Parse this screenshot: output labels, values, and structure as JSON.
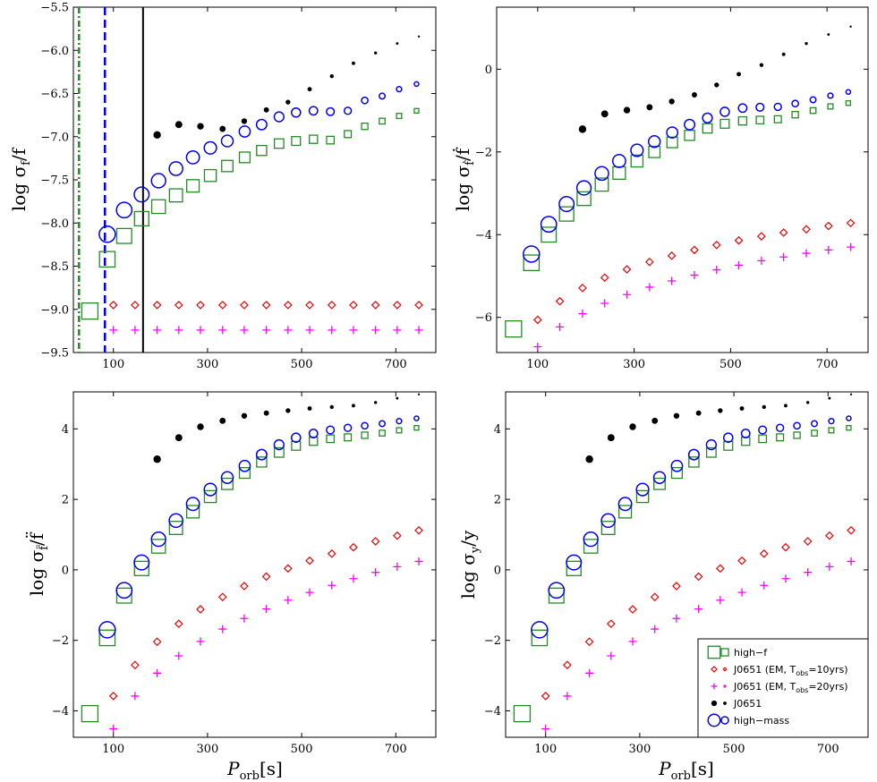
{
  "chart_data": [
    {
      "type": "scatter",
      "panel": "top-left",
      "ylabel_main": "log σ",
      "ylabel_sub": "f",
      "ylabel_tail": "/f",
      "xlabel": "",
      "xlim": [
        15,
        785
      ],
      "ylim": [
        -9.5,
        -5.5
      ],
      "xticks": [
        "100",
        "300",
        "500",
        "700"
      ],
      "xtick_values": [
        100,
        300,
        500,
        700
      ],
      "yticks": [
        "−5.5",
        "−6.0",
        "−6.5",
        "−7.0",
        "−7.5",
        "−8.0",
        "−8.5",
        "−9.0",
        "−9.5"
      ],
      "ytick_values": [
        -5.5,
        -6.0,
        -6.5,
        -7.0,
        -7.5,
        -8.0,
        -8.5,
        -9.0,
        -9.5
      ],
      "vlines": [
        {
          "x": 27,
          "style": "dashdot",
          "color": "#228b22"
        },
        {
          "x": 82,
          "style": "dashed",
          "color": "#0000ee"
        },
        {
          "x": 163,
          "style": "solid",
          "color": "#000000"
        }
      ],
      "series": [
        {
          "name": "high-f",
          "marker": "square",
          "color": "#228b22",
          "x": [
            50,
            87,
            123,
            160,
            196,
            233,
            269,
            306,
            342,
            379,
            415,
            452,
            488,
            525,
            561,
            598,
            634,
            671,
            707,
            744
          ],
          "y": [
            -9.02,
            -8.42,
            -8.15,
            -7.95,
            -7.81,
            -7.68,
            -7.57,
            -7.45,
            -7.34,
            -7.24,
            -7.16,
            -7.08,
            -7.05,
            -7.03,
            -7.04,
            -6.97,
            -6.88,
            -6.82,
            -6.76,
            -6.7
          ]
        },
        {
          "name": "J0651 (EM, Tobs=10yrs)",
          "marker": "diamond",
          "color": "#ee0000",
          "x": [
            100,
            146,
            193,
            239,
            285,
            332,
            378,
            425,
            471,
            517,
            564,
            610,
            657,
            703,
            749
          ],
          "y": [
            -8.95,
            -8.95,
            -8.95,
            -8.95,
            -8.95,
            -8.95,
            -8.95,
            -8.95,
            -8.95,
            -8.95,
            -8.95,
            -8.95,
            -8.95,
            -8.95,
            -8.95
          ]
        },
        {
          "name": "J0651 (EM, Tobs=20yrs)",
          "marker": "plus",
          "color": "#ff00ff",
          "x": [
            100,
            146,
            193,
            239,
            285,
            332,
            378,
            425,
            471,
            517,
            564,
            610,
            657,
            703,
            749
          ],
          "y": [
            -9.24,
            -9.24,
            -9.24,
            -9.24,
            -9.24,
            -9.24,
            -9.24,
            -9.24,
            -9.24,
            -9.24,
            -9.24,
            -9.24,
            -9.24,
            -9.24,
            -9.24
          ]
        },
        {
          "name": "J0651",
          "marker": "dot",
          "color": "#000000",
          "x": [
            193,
            239,
            285,
            332,
            378,
            425,
            471,
            517,
            564,
            610,
            657,
            703,
            749
          ],
          "y": [
            -6.98,
            -6.86,
            -6.88,
            -6.91,
            -6.82,
            -6.69,
            -6.6,
            -6.45,
            -6.3,
            -6.15,
            -6.03,
            -5.92,
            -5.84
          ]
        },
        {
          "name": "high-mass",
          "marker": "circle",
          "color": "#0000ee",
          "x": [
            87,
            123,
            160,
            196,
            233,
            269,
            306,
            342,
            379,
            415,
            452,
            488,
            525,
            561,
            598,
            634,
            671,
            707,
            744
          ],
          "y": [
            -8.13,
            -7.85,
            -7.67,
            -7.51,
            -7.37,
            -7.24,
            -7.13,
            -7.05,
            -6.94,
            -6.86,
            -6.77,
            -6.72,
            -6.7,
            -6.71,
            -6.7,
            -6.58,
            -6.53,
            -6.45,
            -6.39
          ]
        }
      ]
    },
    {
      "type": "scatter",
      "panel": "top-right",
      "ylabel_main": "log σ",
      "ylabel_sub": "ḟ",
      "ylabel_tail": "/ḟ",
      "xlabel": "",
      "xlim": [
        15,
        785
      ],
      "ylim": [
        -6.85,
        1.5
      ],
      "xticks": [
        "100",
        "300",
        "500",
        "700"
      ],
      "xtick_values": [
        100,
        300,
        500,
        700
      ],
      "yticks": [
        "0",
        "−2",
        "−4",
        "−6"
      ],
      "ytick_values": [
        0,
        -2,
        -4,
        -6
      ],
      "series": [
        {
          "name": "high-f",
          "marker": "square",
          "color": "#228b22",
          "x": [
            50,
            87,
            123,
            160,
            196,
            233,
            269,
            306,
            342,
            379,
            415,
            452,
            488,
            525,
            561,
            598,
            634,
            671,
            707,
            744
          ],
          "y": [
            -6.28,
            -4.68,
            -4.0,
            -3.5,
            -3.13,
            -2.79,
            -2.51,
            -2.22,
            -2.0,
            -1.77,
            -1.6,
            -1.43,
            -1.32,
            -1.25,
            -1.23,
            -1.21,
            -1.1,
            -1.0,
            -0.9,
            -0.82
          ]
        },
        {
          "name": "J0651 (EM, Tobs=10yrs)",
          "marker": "diamond",
          "color": "#ee0000",
          "x": [
            100,
            146,
            193,
            239,
            285,
            332,
            378,
            425,
            471,
            517,
            564,
            610,
            657,
            703,
            749
          ],
          "y": [
            -6.06,
            -5.61,
            -5.29,
            -5.04,
            -4.84,
            -4.66,
            -4.51,
            -4.37,
            -4.25,
            -4.14,
            -4.04,
            -3.95,
            -3.87,
            -3.79,
            -3.72
          ]
        },
        {
          "name": "J0651 (EM, Tobs=20yrs)",
          "marker": "plus",
          "color": "#ff00ff",
          "x": [
            100,
            146,
            193,
            239,
            285,
            332,
            378,
            425,
            471,
            517,
            564,
            610,
            657,
            703,
            749
          ],
          "y": [
            -6.71,
            -6.23,
            -5.91,
            -5.66,
            -5.45,
            -5.27,
            -5.12,
            -4.98,
            -4.85,
            -4.74,
            -4.63,
            -4.54,
            -4.45,
            -4.37,
            -4.3
          ]
        },
        {
          "name": "J0651",
          "marker": "dot",
          "color": "#000000",
          "x": [
            193,
            239,
            285,
            332,
            378,
            425,
            471,
            517,
            564,
            610,
            657,
            703,
            749
          ],
          "y": [
            -1.45,
            -1.08,
            -0.99,
            -0.92,
            -0.78,
            -0.62,
            -0.38,
            -0.12,
            0.1,
            0.36,
            0.62,
            0.84,
            1.03
          ]
        },
        {
          "name": "high-mass",
          "marker": "circle",
          "color": "#0000ee",
          "x": [
            87,
            123,
            160,
            196,
            233,
            269,
            306,
            342,
            379,
            415,
            452,
            488,
            525,
            561,
            598,
            634,
            671,
            707,
            744
          ],
          "y": [
            -4.47,
            -3.75,
            -3.26,
            -2.87,
            -2.52,
            -2.22,
            -1.96,
            -1.75,
            -1.53,
            -1.34,
            -1.18,
            -1.03,
            -0.94,
            -0.92,
            -0.91,
            -0.83,
            -0.74,
            -0.64,
            -0.55
          ]
        }
      ]
    },
    {
      "type": "scatter",
      "panel": "bottom-left",
      "ylabel_main": "log σ",
      "ylabel_sub": "f̈",
      "ylabel_tail": "/f̈",
      "xlabel": "P_orb[s]",
      "xlim": [
        15,
        785
      ],
      "ylim": [
        -4.75,
        5.05
      ],
      "xticks": [
        "100",
        "300",
        "500",
        "700"
      ],
      "xtick_values": [
        100,
        300,
        500,
        700
      ],
      "yticks": [
        "4",
        "2",
        "0",
        "−2",
        "−4"
      ],
      "ytick_values": [
        4,
        2,
        0,
        -2,
        -4
      ],
      "series": [
        {
          "name": "high-f",
          "marker": "square",
          "color": "#228b22",
          "x": [
            50,
            87,
            123,
            160,
            196,
            233,
            269,
            306,
            342,
            379,
            415,
            452,
            488,
            525,
            561,
            598,
            634,
            671,
            707,
            744
          ],
          "y": [
            -4.08,
            -1.93,
            -0.73,
            0.04,
            0.67,
            1.19,
            1.65,
            2.08,
            2.44,
            2.75,
            3.06,
            3.33,
            3.52,
            3.65,
            3.72,
            3.76,
            3.82,
            3.88,
            3.96,
            4.03
          ]
        },
        {
          "name": "J0651 (EM, Tobs=10yrs)",
          "marker": "diamond",
          "color": "#ee0000",
          "x": [
            100,
            146,
            193,
            239,
            285,
            332,
            378,
            425,
            471,
            517,
            564,
            610,
            657,
            703,
            749
          ],
          "y": [
            -3.58,
            -2.7,
            -2.04,
            -1.53,
            -1.12,
            -0.77,
            -0.46,
            -0.19,
            0.04,
            0.26,
            0.46,
            0.64,
            0.81,
            0.97,
            1.12
          ]
        },
        {
          "name": "J0651 (EM, Tobs=20yrs)",
          "marker": "plus",
          "color": "#ff00ff",
          "x": [
            100,
            146,
            193,
            239,
            285,
            332,
            378,
            425,
            471,
            517,
            564,
            610,
            657,
            703,
            749
          ],
          "y": [
            -4.51,
            -3.58,
            -2.93,
            -2.44,
            -2.03,
            -1.68,
            -1.38,
            -1.11,
            -0.86,
            -0.64,
            -0.44,
            -0.25,
            -0.07,
            0.09,
            0.24
          ]
        },
        {
          "name": "J0651",
          "marker": "dot",
          "color": "#000000",
          "x": [
            193,
            239,
            285,
            332,
            378,
            425,
            471,
            517,
            564,
            610,
            657,
            703,
            749
          ],
          "y": [
            3.14,
            3.75,
            4.06,
            4.23,
            4.37,
            4.45,
            4.52,
            4.58,
            4.62,
            4.66,
            4.75,
            4.87,
            4.98
          ]
        },
        {
          "name": "high-mass",
          "marker": "circle",
          "color": "#0000ee",
          "x": [
            87,
            123,
            160,
            196,
            233,
            269,
            306,
            342,
            379,
            415,
            452,
            488,
            525,
            561,
            598,
            634,
            671,
            707,
            744
          ],
          "y": [
            -1.7,
            -0.58,
            0.21,
            0.87,
            1.4,
            1.87,
            2.28,
            2.62,
            2.95,
            3.27,
            3.55,
            3.75,
            3.87,
            3.97,
            4.03,
            4.09,
            4.15,
            4.22,
            4.3
          ]
        }
      ]
    },
    {
      "type": "scatter",
      "panel": "bottom-right",
      "ylabel_main": "log σ",
      "ylabel_sub": "y",
      "ylabel_tail": "/y",
      "xlabel": "P_orb[s]",
      "xlim": [
        15,
        785
      ],
      "ylim": [
        -4.75,
        5.05
      ],
      "xticks": [
        "100",
        "300",
        "500",
        "700"
      ],
      "xtick_values": [
        100,
        300,
        500,
        700
      ],
      "yticks": [
        "4",
        "2",
        "0",
        "−2",
        "−4"
      ],
      "ytick_values": [
        4,
        2,
        0,
        -2,
        -4
      ],
      "legend_position": "lower-right",
      "series": [
        {
          "name": "high-f",
          "marker": "square",
          "color": "#228b22",
          "x": [
            50,
            87,
            123,
            160,
            196,
            233,
            269,
            306,
            342,
            379,
            415,
            452,
            488,
            525,
            561,
            598,
            634,
            671,
            707,
            744
          ],
          "y": [
            -4.08,
            -1.93,
            -0.73,
            0.04,
            0.67,
            1.19,
            1.65,
            2.08,
            2.44,
            2.75,
            3.06,
            3.33,
            3.52,
            3.65,
            3.72,
            3.76,
            3.82,
            3.88,
            3.96,
            4.03
          ]
        },
        {
          "name": "J0651 (EM, Tobs=10yrs)",
          "marker": "diamond",
          "color": "#ee0000",
          "x": [
            100,
            146,
            193,
            239,
            285,
            332,
            378,
            425,
            471,
            517,
            564,
            610,
            657,
            703,
            749
          ],
          "y": [
            -3.58,
            -2.7,
            -2.04,
            -1.53,
            -1.12,
            -0.77,
            -0.46,
            -0.19,
            0.04,
            0.26,
            0.46,
            0.64,
            0.81,
            0.97,
            1.12
          ]
        },
        {
          "name": "J0651 (EM, Tobs=20yrs)",
          "marker": "plus",
          "color": "#ff00ff",
          "x": [
            100,
            146,
            193,
            239,
            285,
            332,
            378,
            425,
            471,
            517,
            564,
            610,
            657,
            703,
            749
          ],
          "y": [
            -4.51,
            -3.58,
            -2.93,
            -2.44,
            -2.03,
            -1.68,
            -1.38,
            -1.11,
            -0.86,
            -0.64,
            -0.44,
            -0.25,
            -0.07,
            0.09,
            0.24
          ]
        },
        {
          "name": "J0651",
          "marker": "dot",
          "color": "#000000",
          "x": [
            193,
            239,
            285,
            332,
            378,
            425,
            471,
            517,
            564,
            610,
            657,
            703,
            749
          ],
          "y": [
            3.14,
            3.75,
            4.06,
            4.23,
            4.37,
            4.45,
            4.52,
            4.58,
            4.62,
            4.66,
            4.75,
            4.87,
            4.98
          ]
        },
        {
          "name": "high-mass",
          "marker": "circle",
          "color": "#0000ee",
          "x": [
            87,
            123,
            160,
            196,
            233,
            269,
            306,
            342,
            379,
            415,
            452,
            488,
            525,
            561,
            598,
            634,
            671,
            707,
            744
          ],
          "y": [
            -1.7,
            -0.58,
            0.21,
            0.87,
            1.4,
            1.87,
            2.28,
            2.62,
            2.95,
            3.27,
            3.55,
            3.75,
            3.87,
            3.97,
            4.03,
            4.09,
            4.15,
            4.22,
            4.3
          ]
        }
      ]
    }
  ],
  "legend": {
    "items": [
      {
        "marker": "square",
        "color": "#228b22",
        "label": "high−f"
      },
      {
        "marker": "diamond",
        "color": "#ee0000",
        "label_main": "J0651 (EM, T",
        "label_sub": "obs",
        "label_tail": "=10yrs)"
      },
      {
        "marker": "plus",
        "color": "#ff00ff",
        "label_main": "J0651 (EM, T",
        "label_sub": "obs",
        "label_tail": "=20yrs)"
      },
      {
        "marker": "dot",
        "color": "#000000",
        "label": "J0651"
      },
      {
        "marker": "circle",
        "color": "#0000ee",
        "label": "high−mass"
      }
    ]
  },
  "xlabel_main": "P",
  "xlabel_sub": "orb",
  "xlabel_tail": "[s]"
}
